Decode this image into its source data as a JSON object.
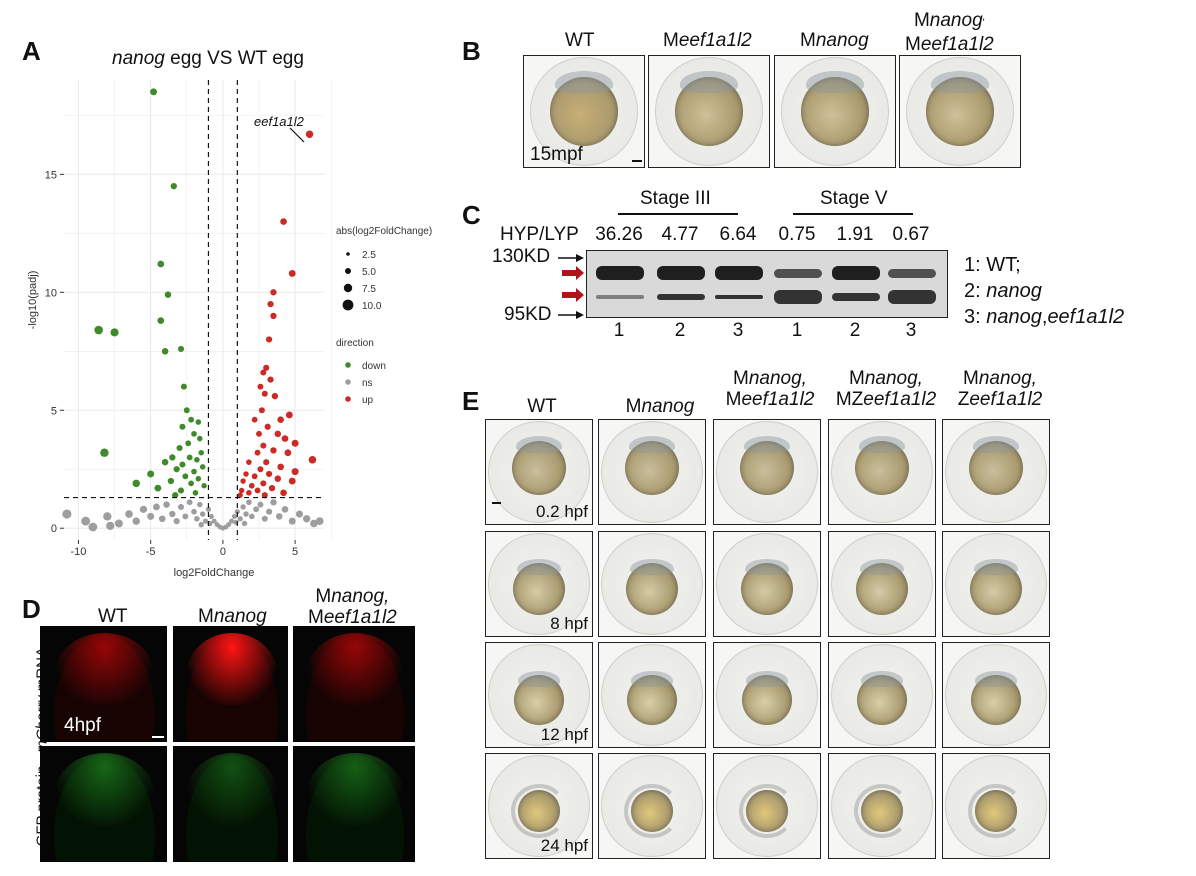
{
  "panelA": {
    "letter": "A",
    "title_gene": "nanog",
    "title_rest": "egg VS WT egg",
    "annotation": "eef1a1l2",
    "chart_data": {
      "type": "scatter",
      "title": "nanog egg VS WT egg",
      "xlabel": "log2FoldChange",
      "ylabel": "-log10(padj)",
      "xlim": [
        -11,
        7
      ],
      "ylim": [
        -0.5,
        19
      ],
      "x_ticks": [
        "-10",
        "-5",
        "0",
        "5"
      ],
      "y_ticks": [
        "0",
        "5",
        "10",
        "15"
      ],
      "vlines": [
        -1,
        1
      ],
      "hline": 1.3,
      "legend_size_title": "abs(log2FoldChange)",
      "legend_size_items": [
        "2.5",
        "5.0",
        "7.5",
        "10.0"
      ],
      "legend_color_title": "direction",
      "legend_color_items": [
        {
          "label": "down",
          "color": "#3f8a2a"
        },
        {
          "label": "ns",
          "color": "#9e9e9e"
        },
        {
          "label": "up",
          "color": "#cc2a24"
        }
      ],
      "series": [
        {
          "name": "up",
          "color": "#cc2a24",
          "points": [
            [
              6.0,
              16.7
            ],
            [
              4.2,
              13.0
            ],
            [
              4.8,
              10.8
            ],
            [
              3.5,
              10.0
            ],
            [
              3.3,
              9.5
            ],
            [
              3.5,
              9.0
            ],
            [
              3.2,
              8.0
            ],
            [
              3.0,
              6.8
            ],
            [
              2.8,
              6.6
            ],
            [
              3.3,
              6.3
            ],
            [
              2.6,
              6.0
            ],
            [
              2.9,
              5.7
            ],
            [
              3.6,
              5.6
            ],
            [
              2.7,
              5.0
            ],
            [
              4.6,
              4.8
            ],
            [
              2.2,
              4.6
            ],
            [
              4.0,
              4.6
            ],
            [
              3.1,
              4.3
            ],
            [
              3.8,
              4.0
            ],
            [
              2.5,
              4.0
            ],
            [
              4.3,
              3.8
            ],
            [
              5.0,
              3.6
            ],
            [
              2.8,
              3.5
            ],
            [
              3.5,
              3.3
            ],
            [
              4.5,
              3.2
            ],
            [
              2.4,
              3.2
            ],
            [
              6.2,
              2.9
            ],
            [
              3.0,
              2.8
            ],
            [
              1.8,
              2.8
            ],
            [
              4.0,
              2.6
            ],
            [
              2.6,
              2.5
            ],
            [
              5.0,
              2.4
            ],
            [
              3.2,
              2.3
            ],
            [
              1.6,
              2.3
            ],
            [
              2.2,
              2.2
            ],
            [
              3.8,
              2.1
            ],
            [
              4.8,
              2.0
            ],
            [
              1.4,
              2.0
            ],
            [
              2.8,
              1.9
            ],
            [
              2.0,
              1.8
            ],
            [
              3.4,
              1.7
            ],
            [
              1.3,
              1.6
            ],
            [
              2.4,
              1.6
            ],
            [
              1.8,
              1.5
            ],
            [
              4.2,
              1.5
            ],
            [
              1.2,
              1.4
            ],
            [
              2.9,
              1.4
            ]
          ]
        },
        {
          "name": "down",
          "color": "#3f8a2a",
          "points": [
            [
              -4.8,
              18.5
            ],
            [
              -3.4,
              14.5
            ],
            [
              -4.3,
              11.2
            ],
            [
              -3.8,
              9.9
            ],
            [
              -4.3,
              8.8
            ],
            [
              -8.6,
              8.4
            ],
            [
              -7.5,
              8.3
            ],
            [
              -2.9,
              7.6
            ],
            [
              -4.0,
              7.5
            ],
            [
              -2.7,
              6.0
            ],
            [
              -2.5,
              5.0
            ],
            [
              -2.2,
              4.6
            ],
            [
              -1.7,
              4.5
            ],
            [
              -2.8,
              4.3
            ],
            [
              -2.0,
              4.0
            ],
            [
              -1.6,
              3.8
            ],
            [
              -2.4,
              3.6
            ],
            [
              -3.0,
              3.4
            ],
            [
              -8.2,
              3.2
            ],
            [
              -1.5,
              3.2
            ],
            [
              -3.5,
              3.0
            ],
            [
              -2.3,
              3.0
            ],
            [
              -1.8,
              2.9
            ],
            [
              -4.0,
              2.8
            ],
            [
              -2.8,
              2.7
            ],
            [
              -1.4,
              2.6
            ],
            [
              -3.2,
              2.5
            ],
            [
              -2.0,
              2.4
            ],
            [
              -5.0,
              2.3
            ],
            [
              -2.6,
              2.2
            ],
            [
              -1.7,
              2.1
            ],
            [
              -3.6,
              2.0
            ],
            [
              -6.0,
              1.9
            ],
            [
              -2.2,
              1.9
            ],
            [
              -1.3,
              1.8
            ],
            [
              -4.5,
              1.7
            ],
            [
              -2.9,
              1.6
            ],
            [
              -1.9,
              1.5
            ],
            [
              -3.3,
              1.4
            ]
          ]
        },
        {
          "name": "ns",
          "color": "#9e9e9e",
          "points": [
            [
              -10.8,
              0.6
            ],
            [
              -9.5,
              0.3
            ],
            [
              -8.0,
              0.5
            ],
            [
              -7.2,
              0.2
            ],
            [
              -6.5,
              0.6
            ],
            [
              -6.0,
              0.3
            ],
            [
              -5.5,
              0.8
            ],
            [
              -5.0,
              0.5
            ],
            [
              -4.6,
              0.9
            ],
            [
              -4.2,
              0.4
            ],
            [
              -3.9,
              1.0
            ],
            [
              -3.5,
              0.6
            ],
            [
              -3.2,
              0.3
            ],
            [
              -2.9,
              0.9
            ],
            [
              -2.6,
              0.5
            ],
            [
              -2.3,
              1.1
            ],
            [
              -2.0,
              0.7
            ],
            [
              -1.8,
              0.4
            ],
            [
              -1.6,
              1.0
            ],
            [
              -1.4,
              0.6
            ],
            [
              -1.2,
              0.3
            ],
            [
              -1.0,
              0.8
            ],
            [
              -0.8,
              0.5
            ],
            [
              -0.6,
              0.3
            ],
            [
              -0.4,
              0.15
            ],
            [
              -0.2,
              0.05
            ],
            [
              0.0,
              0.0
            ],
            [
              0.2,
              0.05
            ],
            [
              0.4,
              0.15
            ],
            [
              0.6,
              0.3
            ],
            [
              0.8,
              0.5
            ],
            [
              1.0,
              0.7
            ],
            [
              1.2,
              0.4
            ],
            [
              1.4,
              0.9
            ],
            [
              1.6,
              0.6
            ],
            [
              1.8,
              1.1
            ],
            [
              2.0,
              0.5
            ],
            [
              2.3,
              0.8
            ],
            [
              2.6,
              1.0
            ],
            [
              2.9,
              0.4
            ],
            [
              3.2,
              0.7
            ],
            [
              3.5,
              1.1
            ],
            [
              3.9,
              0.5
            ],
            [
              4.3,
              0.8
            ],
            [
              4.8,
              0.3
            ],
            [
              5.3,
              0.6
            ],
            [
              5.8,
              0.4
            ],
            [
              6.3,
              0.2
            ],
            [
              6.7,
              0.3
            ],
            [
              -7.8,
              0.1
            ],
            [
              -9.0,
              0.05
            ],
            [
              -0.9,
              0.2
            ],
            [
              0.9,
              0.25
            ],
            [
              -1.5,
              0.15
            ],
            [
              1.5,
              0.2
            ]
          ]
        }
      ]
    }
  },
  "panelB": {
    "letter": "B",
    "columns": [
      {
        "pre": "WT",
        "ital": "",
        "pre2": "",
        "ital2": ""
      },
      {
        "pre": "M",
        "ital": "eef1a1l2",
        "pre2": "",
        "ital2": ""
      },
      {
        "pre": "M",
        "ital": "nanog",
        "pre2": "",
        "ital2": ""
      },
      {
        "pre": "M",
        "ital": "nanog",
        "pre2": "M",
        "ital2": "eef1a1l2",
        "mark": "'"
      }
    ],
    "stage": "15mpf"
  },
  "panelC": {
    "letter": "C",
    "stage3": "Stage III",
    "stage5": "Stage V",
    "ratio_label": "HYP/LYP",
    "ratios": [
      "36.26",
      "4.77",
      "6.64",
      "0.75",
      "1.91",
      "0.67"
    ],
    "marker_top": "130KD",
    "marker_bottom": "95KD",
    "lane_numbers": [
      "1",
      "2",
      "3",
      "1",
      "2",
      "3"
    ],
    "key": [
      {
        "num": "1:",
        "text": "WT;",
        "italic": false
      },
      {
        "num": "2:",
        "text": "nanog",
        "italic": true
      },
      {
        "num": "3:",
        "text": "nanog",
        "text2": "eef1a1l2",
        "italic": true
      }
    ]
  },
  "panelD": {
    "letter": "D",
    "columns": [
      {
        "pre": "WT",
        "ital": ""
      },
      {
        "pre": "M",
        "ital": "nanog"
      },
      {
        "pre": "M",
        "ital": "nanog,",
        "pre2": "M",
        "ital2": "eef1a1l2"
      }
    ],
    "row1_ital": "mCherry",
    "row1_rest": " mRNA",
    "row2": "GFP protein",
    "stage": "4hpf"
  },
  "panelE": {
    "letter": "E",
    "columns": [
      {
        "pre": "WT",
        "ital": ""
      },
      {
        "pre": "M",
        "ital": "nanog"
      },
      {
        "pre": "M",
        "ital": "nanog,",
        "pre2": "M",
        "ital2": "eef1a1l2"
      },
      {
        "pre": "M",
        "ital": "nanog,",
        "pre2": "MZ",
        "ital2": "eef1a1l2"
      },
      {
        "pre": "M",
        "ital": "nanog,",
        "pre2": "Z",
        "ital2": "eef1a1l2"
      }
    ],
    "stages": [
      "0.2 hpf",
      "8 hpf",
      "12 hpf",
      "24 hpf"
    ]
  }
}
